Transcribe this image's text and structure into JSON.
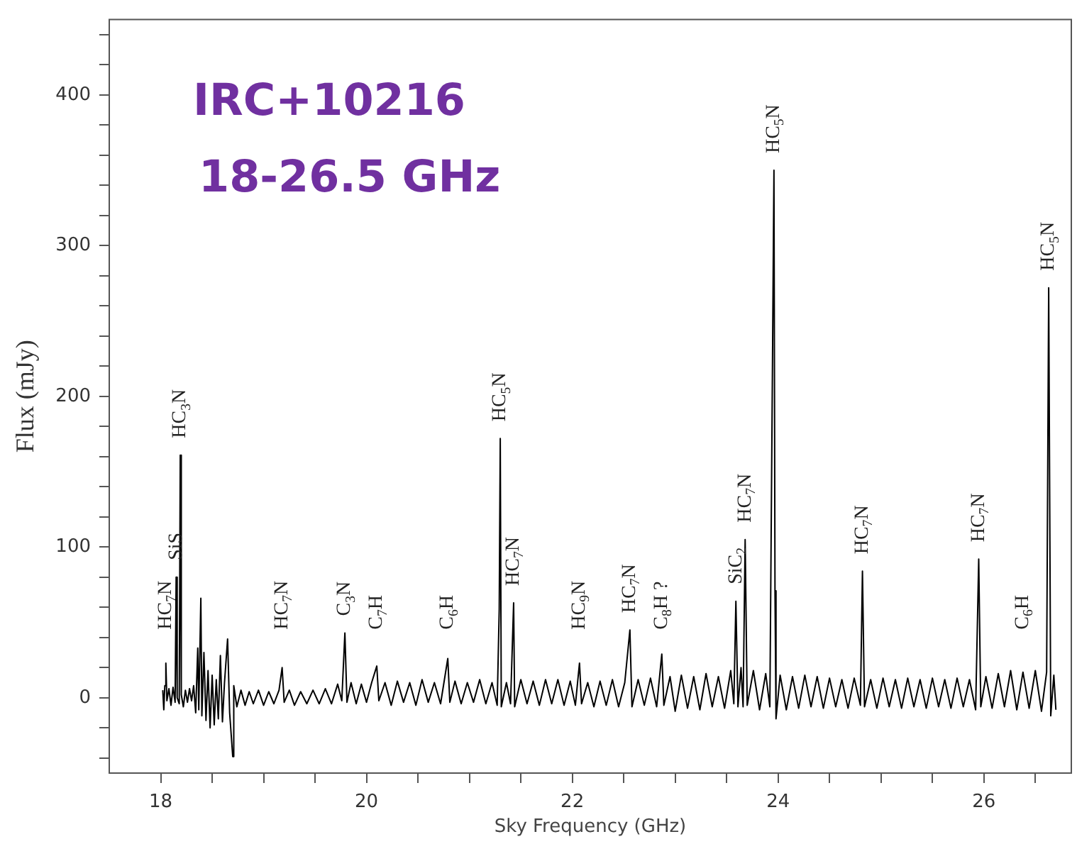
{
  "chart_data": {
    "type": "line",
    "title": "IRC+10216",
    "subtitle": "18-26.5 GHz",
    "xlabel": "Sky Frequency (GHz)",
    "ylabel": "Flux (mJy)",
    "xlim": [
      17.5,
      26.85
    ],
    "ylim": [
      -50,
      450
    ],
    "xticks": [
      18,
      {
        "value": 18.5,
        "label": null
      },
      {
        "value": 19,
        "label": null
      },
      {
        "value": 19.5,
        "label": null
      },
      20,
      {
        "value": 20.5,
        "label": null
      },
      {
        "value": 21,
        "label": null
      },
      {
        "value": 21.5,
        "label": null
      },
      22,
      {
        "value": 22.5,
        "label": null
      },
      {
        "value": 23,
        "label": null
      },
      {
        "value": 23.5,
        "label": null
      },
      24,
      {
        "value": 24.5,
        "label": null
      },
      {
        "value": 25,
        "label": null
      },
      {
        "value": 25.5,
        "label": null
      },
      26,
      {
        "value": 26.5,
        "label": null
      }
    ],
    "yticks": [
      {
        "value": -40,
        "label": null
      },
      {
        "value": -20,
        "label": null
      },
      0,
      {
        "value": 20,
        "label": null
      },
      {
        "value": 40,
        "label": null
      },
      {
        "value": 60,
        "label": null
      },
      {
        "value": 80,
        "label": null
      },
      100,
      {
        "value": 120,
        "label": null
      },
      {
        "value": 140,
        "label": null
      },
      {
        "value": 160,
        "label": null
      },
      {
        "value": 180,
        "label": null
      },
      200,
      {
        "value": 220,
        "label": null
      },
      {
        "value": 240,
        "label": null
      },
      {
        "value": 260,
        "label": null
      },
      {
        "value": 280,
        "label": null
      },
      300,
      {
        "value": 320,
        "label": null
      },
      {
        "value": 340,
        "label": null
      },
      {
        "value": 360,
        "label": null
      },
      {
        "value": 380,
        "label": null
      },
      400,
      {
        "value": 420,
        "label": null
      },
      {
        "value": 440,
        "label": null
      }
    ],
    "grid": false,
    "marker": "none",
    "line_style": "solid",
    "series": [
      {
        "color": "#000000",
        "x": [
          18.02,
          18.03,
          18.04,
          18.05,
          18.06,
          18.08,
          18.1,
          18.12,
          18.14,
          18.15,
          18.16,
          18.18,
          18.19,
          18.2,
          18.22,
          18.24,
          18.26,
          18.28,
          18.3,
          18.32,
          18.34,
          18.36,
          18.37,
          18.39,
          18.4,
          18.42,
          18.44,
          18.46,
          18.48,
          18.5,
          18.52,
          18.54,
          18.56,
          18.58,
          18.6,
          18.62,
          18.65,
          18.67,
          18.7,
          18.71,
          18.74,
          18.78,
          18.82,
          18.86,
          18.9,
          18.95,
          19,
          19.05,
          19.1,
          19.15,
          19.18,
          19.2,
          19.25,
          19.3,
          19.36,
          19.42,
          19.48,
          19.54,
          19.6,
          19.66,
          19.72,
          19.76,
          19.79,
          19.81,
          19.85,
          19.9,
          19.95,
          20,
          20.05,
          20.1,
          20.12,
          20.18,
          20.24,
          20.3,
          20.36,
          20.42,
          20.48,
          20.54,
          20.6,
          20.66,
          20.72,
          20.79,
          20.81,
          20.86,
          20.92,
          20.98,
          21.04,
          21.1,
          21.16,
          21.22,
          21.27,
          21.29,
          21.3,
          21.31,
          21.36,
          21.4,
          21.43,
          21.44,
          21.5,
          21.56,
          21.62,
          21.68,
          21.74,
          21.8,
          21.86,
          21.92,
          21.98,
          22.03,
          22.07,
          22.09,
          22.15,
          22.21,
          22.27,
          22.33,
          22.39,
          22.45,
          22.51,
          22.56,
          22.58,
          22.64,
          22.7,
          22.76,
          22.82,
          22.87,
          22.89,
          22.95,
          23,
          23.06,
          23.12,
          23.18,
          23.24,
          23.3,
          23.36,
          23.42,
          23.48,
          23.54,
          23.57,
          23.59,
          23.61,
          23.64,
          23.66,
          23.68,
          23.7,
          23.76,
          23.82,
          23.88,
          23.92,
          23.96,
          23.97,
          23.98,
          24.02,
          24.08,
          24.14,
          24.2,
          24.26,
          24.32,
          24.38,
          24.44,
          24.5,
          24.56,
          24.62,
          24.68,
          24.74,
          24.8,
          24.82,
          24.84,
          24.9,
          24.96,
          25.02,
          25.08,
          25.14,
          25.2,
          25.26,
          25.32,
          25.38,
          25.44,
          25.5,
          25.56,
          25.62,
          25.68,
          25.74,
          25.8,
          25.86,
          25.92,
          25.95,
          25.97,
          26.02,
          26.08,
          26.14,
          26.2,
          26.26,
          26.32,
          26.38,
          26.44,
          26.5,
          26.56,
          26.61,
          26.63,
          26.65,
          26.68,
          26.7
        ],
        "values": [
          5,
          -8,
          8,
          23,
          -2,
          6,
          -5,
          7,
          -3,
          80,
          0,
          -4,
          161,
          2,
          -6,
          5,
          -3,
          6,
          -2,
          8,
          -10,
          33,
          -8,
          66,
          -12,
          30,
          -15,
          18,
          -20,
          15,
          -18,
          12,
          -14,
          28,
          -16,
          10,
          39,
          -10,
          -39,
          8,
          -6,
          5,
          -5,
          4,
          -4,
          5,
          -5,
          4,
          -4,
          5,
          20,
          -3,
          5,
          -5,
          4,
          -4,
          5,
          -4,
          6,
          -4,
          9,
          -2,
          43,
          -3,
          10,
          -4,
          9,
          -3,
          10,
          21,
          -2,
          10,
          -5,
          11,
          -3,
          10,
          -5,
          12,
          -3,
          10,
          -4,
          26,
          -3,
          11,
          -4,
          10,
          -3,
          12,
          -4,
          10,
          -5,
          59,
          172,
          -6,
          10,
          -4,
          63,
          -6,
          12,
          -4,
          11,
          -5,
          12,
          -4,
          12,
          -5,
          11,
          -5,
          23,
          -4,
          10,
          -6,
          11,
          -5,
          12,
          -6,
          10,
          45,
          -6,
          12,
          -5,
          13,
          -6,
          29,
          -5,
          14,
          -9,
          15,
          -7,
          14,
          -8,
          16,
          -6,
          14,
          -7,
          18,
          -4,
          64,
          -6,
          20,
          -6,
          105,
          -5,
          18,
          -8,
          16,
          -6,
          350,
          71,
          -14,
          15,
          -8,
          14,
          -7,
          15,
          -6,
          14,
          -7,
          13,
          -6,
          12,
          -7,
          13,
          -5,
          84,
          -6,
          12,
          -7,
          13,
          -6,
          12,
          -7,
          13,
          -6,
          12,
          -7,
          13,
          -6,
          12,
          -7,
          13,
          -6,
          12,
          -8,
          92,
          -6,
          14,
          -7,
          16,
          -6,
          18,
          -8,
          17,
          -7,
          18,
          -9,
          17,
          272,
          -12,
          15,
          -8
        ]
      }
    ],
    "annotations": [
      {
        "text": "HC$_{7}$N",
        "x": 18.05,
        "y": 23
      },
      {
        "text": "SiS",
        "x": 18.15,
        "y": 80
      },
      {
        "text": "HC$_{3}$N",
        "x": 18.19,
        "y": 161
      },
      {
        "text": "HC$_{7}$N",
        "x": 19.18,
        "y": 20
      },
      {
        "text": "C$_{3}$N",
        "x": 19.79,
        "y": 43
      },
      {
        "text": "C$_{7}$H",
        "x": 20.1,
        "y": 21
      },
      {
        "text": "C$_{6}$H",
        "x": 20.79,
        "y": 26
      },
      {
        "text": "HC$_{5}$N",
        "x": 21.3,
        "y": 172
      },
      {
        "text": "HC$_{7}$N",
        "x": 21.43,
        "y": 63
      },
      {
        "text": "HC$_{9}$N",
        "x": 22.07,
        "y": 23
      },
      {
        "text": "HC$_{7}$N",
        "x": 22.56,
        "y": 45
      },
      {
        "text": "C$_{8}$H ?",
        "x": 22.87,
        "y": 29
      },
      {
        "text": "SiC$_{2}$",
        "x": 23.59,
        "y": 64
      },
      {
        "text": "HC$_{7}$N",
        "x": 23.68,
        "y": 105
      },
      {
        "text": "HC$_{5}$N",
        "x": 23.96,
        "y": 350
      },
      {
        "text": "HC$_{7}$N",
        "x": 24.82,
        "y": 84
      },
      {
        "text": "HC$_{7}$N",
        "x": 25.95,
        "y": 92
      },
      {
        "text": "C$_{6}$H",
        "x": 26.38,
        "y": 17
      },
      {
        "text": "HC$_{5}$N",
        "x": 26.63,
        "y": 272
      }
    ]
  }
}
